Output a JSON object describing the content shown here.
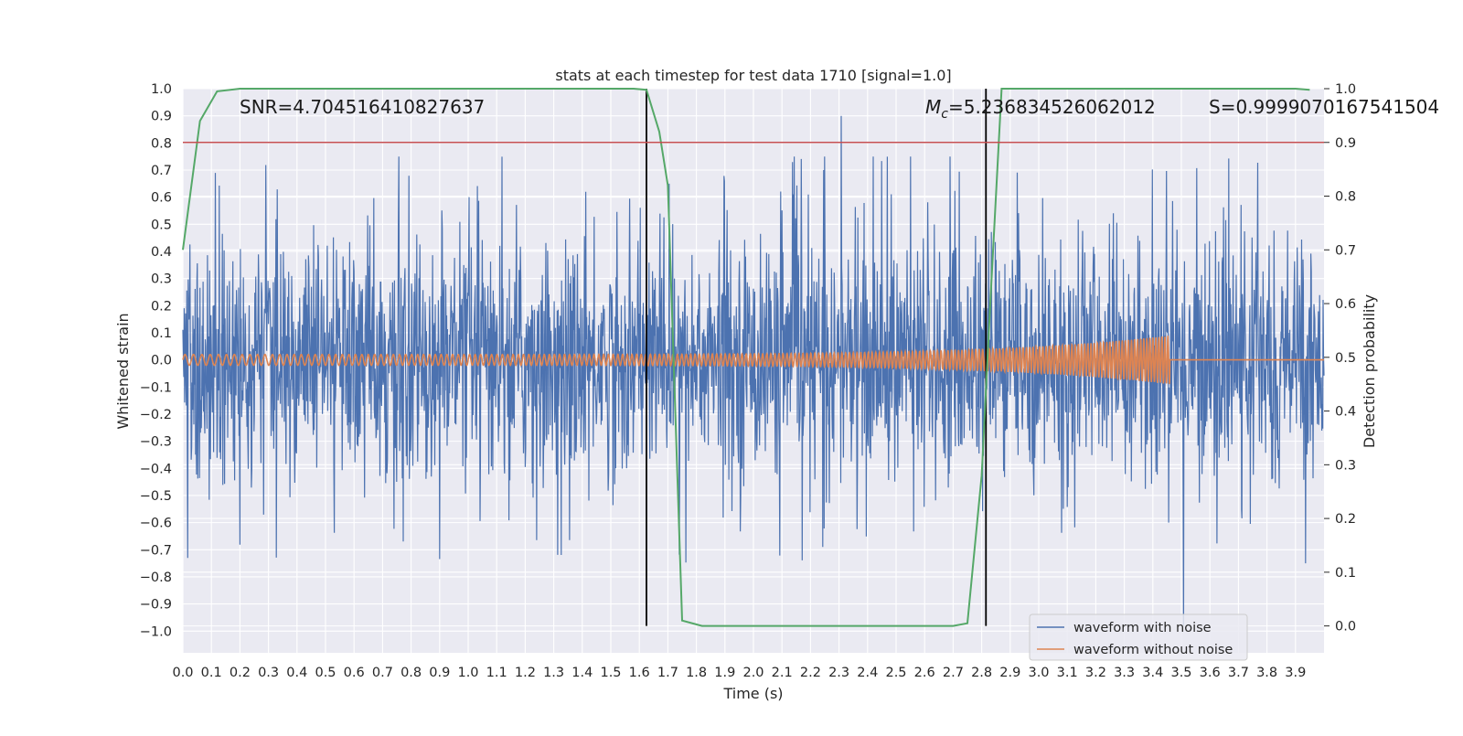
{
  "chart_data": {
    "type": "line",
    "title": "stats at each timestep for test data 1710 [signal=1.0]",
    "xlabel": "Time (s)",
    "ylabel": "Whitened strain",
    "y2label": "Detection probability",
    "xlim": [
      0.0,
      4.0
    ],
    "ylim": [
      -1.08,
      1.0
    ],
    "y2lim": [
      -0.05,
      1.0
    ],
    "x_ticks": [
      "0.0",
      "0.1",
      "0.2",
      "0.3",
      "0.4",
      "0.5",
      "0.6",
      "0.7",
      "0.8",
      "0.9",
      "1.0",
      "1.1",
      "1.2",
      "1.3",
      "1.4",
      "1.5",
      "1.6",
      "1.7",
      "1.8",
      "1.9",
      "2.0",
      "2.1",
      "2.2",
      "2.3",
      "2.4",
      "2.5",
      "2.6",
      "2.7",
      "2.8",
      "2.9",
      "3.0",
      "3.1",
      "3.2",
      "3.3",
      "3.4",
      "3.5",
      "3.6",
      "3.7",
      "3.8",
      "3.9"
    ],
    "y_ticks": [
      "−1.0",
      "−0.9",
      "−0.8",
      "−0.7",
      "−0.6",
      "−0.5",
      "−0.4",
      "−0.3",
      "−0.2",
      "−0.1",
      "0.0",
      "0.1",
      "0.2",
      "0.3",
      "0.4",
      "0.5",
      "0.6",
      "0.7",
      "0.8",
      "0.9",
      "1.0"
    ],
    "y2_ticks": [
      "0.0",
      "0.1",
      "0.2",
      "0.3",
      "0.4",
      "0.5",
      "0.6",
      "0.7",
      "0.8",
      "0.9",
      "1.0"
    ],
    "annotations": {
      "snr": "SNR=4.704516410827637",
      "mc_symbol": "M",
      "mc_sub": "c",
      "mc_value": "=5.236834526062012",
      "s": "S=0.9999070167541504"
    },
    "vertical_lines_x": [
      1.625,
      2.815
    ],
    "threshold_y2": 0.9,
    "series": [
      {
        "name": "waveform with noise",
        "color": "#4c72b0",
        "description": "noisy whitened strain, amplitude roughly within ±0.75 with spikes to 0.9 and −0.98",
        "envelope_peak": 0.75
      },
      {
        "name": "waveform without noise",
        "color": "#dd8452",
        "chirp_start_amp": 0.02,
        "chirp_end_amp": 0.09,
        "merger_x": 3.46
      },
      {
        "name": "detection probability",
        "axis": "right",
        "color": "#55a868",
        "x": [
          0.0,
          0.06,
          0.12,
          0.2,
          0.5,
          1.0,
          1.5,
          1.58,
          1.625,
          1.67,
          1.7,
          1.75,
          1.82,
          2.0,
          2.5,
          2.7,
          2.75,
          2.8,
          2.83,
          2.87,
          3.0,
          3.5,
          3.9,
          3.95
        ],
        "values": [
          0.7,
          0.94,
          0.995,
          1.0,
          1.0,
          1.0,
          1.0,
          1.0,
          0.998,
          0.92,
          0.82,
          0.01,
          0.0,
          0.0,
          0.0,
          0.0,
          0.005,
          0.28,
          0.6,
          1.0,
          1.0,
          1.0,
          1.0,
          0.998
        ]
      },
      {
        "name": "threshold",
        "axis": "right",
        "color": "#c44e52",
        "values": [
          0.9,
          0.9
        ]
      }
    ],
    "legend": {
      "placement": "lower-right",
      "entries": [
        "waveform with noise",
        "waveform without noise"
      ]
    }
  }
}
